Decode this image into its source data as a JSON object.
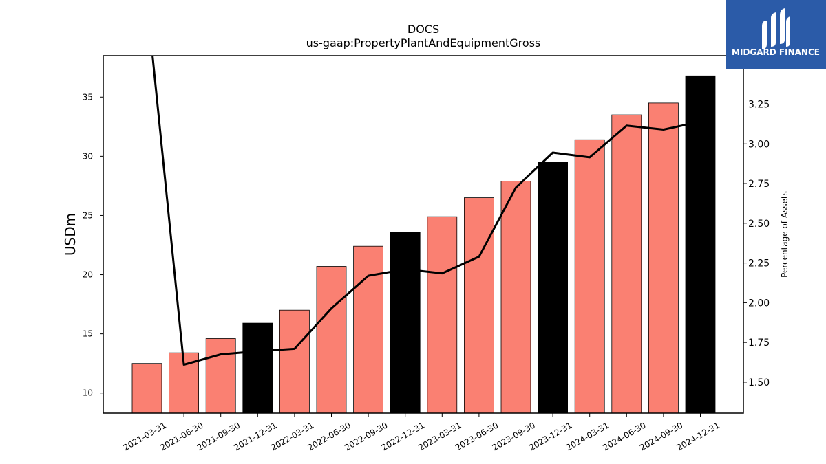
{
  "chart_data": {
    "type": "bar",
    "title": "DOCS",
    "subtitle": "us-gaap:PropertyPlantAndEquipmentGross",
    "ylabel": "USDm",
    "y2label": "Percentage of Assets",
    "categories": [
      "2021-03-31",
      "2021-06-30",
      "2021-09-30",
      "2021-12-31",
      "2022-03-31",
      "2022-06-30",
      "2022-09-30",
      "2022-12-31",
      "2023-03-31",
      "2023-06-30",
      "2023-09-30",
      "2023-12-31",
      "2024-03-31",
      "2024-06-30",
      "2024-09-30",
      "2024-12-31"
    ],
    "series": [
      {
        "type": "bar",
        "axis": "left",
        "values": [
          12.5,
          13.4,
          14.6,
          15.9,
          17.0,
          20.7,
          22.4,
          23.6,
          24.9,
          26.5,
          27.9,
          29.5,
          31.4,
          33.5,
          34.5,
          36.8
        ],
        "colors": [
          "#FA8072",
          "#FA8072",
          "#FA8072",
          "#000000",
          "#FA8072",
          "#FA8072",
          "#FA8072",
          "#000000",
          "#FA8072",
          "#FA8072",
          "#FA8072",
          "#000000",
          "#FA8072",
          "#FA8072",
          "#FA8072",
          "#000000"
        ]
      },
      {
        "type": "line",
        "axis": "right",
        "color": "#000000",
        "values": [
          3.9,
          1.61,
          1.675,
          1.695,
          1.71,
          1.965,
          2.17,
          2.21,
          2.185,
          2.29,
          2.725,
          2.945,
          2.915,
          3.115,
          3.09,
          3.14
        ]
      }
    ],
    "ylim": [
      8.3,
      38.5
    ],
    "yticks": [
      "10",
      "15",
      "20",
      "25",
      "30",
      "35"
    ],
    "y2lim": [
      1.305,
      3.555
    ],
    "y2ticks": [
      "1.50",
      "1.75",
      "2.00",
      "2.25",
      "2.50",
      "2.75",
      "3.00",
      "3.25"
    ],
    "grid": false
  },
  "logo": {
    "text": "MIDGARD FINANCE",
    "bg_color": "#2B5BA8"
  }
}
